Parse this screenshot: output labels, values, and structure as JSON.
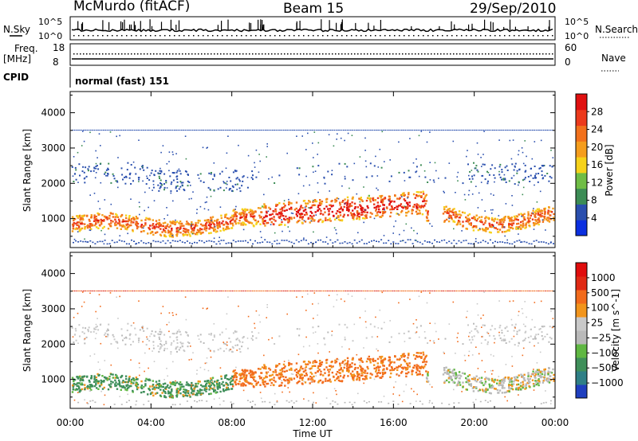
{
  "header": {
    "station": "McMurdo (fitACF)",
    "beam": "Beam 15",
    "date": "29/Sep/2010"
  },
  "top_panels": {
    "nsky_label": "N.Sky",
    "nsky_ticks": [
      "10^5",
      "10^0"
    ],
    "nsearch_label": "N.Search",
    "nsearch_ticks": [
      "10^5",
      "10^0"
    ],
    "freq_label": "Freq.",
    "freq_unit": "[MHz]",
    "freq_ticks": [
      "18",
      "8"
    ],
    "nave_label": "Nave",
    "nave_ticks": [
      "60",
      "0"
    ],
    "cpid_label": "CPID",
    "cpid_text": "normal (fast) 151"
  },
  "colors": {
    "power": [
      "#0b2fe0",
      "#2a4fae",
      "#3c8c55",
      "#6fbd45",
      "#f6d21a",
      "#f59d1d",
      "#f2711c",
      "#ec3a1c",
      "#e01010"
    ],
    "velocity": [
      "#1f3fbf",
      "#2f7f86",
      "#3f8f5a",
      "#5fb742",
      "#b9b9b9",
      "#c9c9c9",
      "#f2951c",
      "#f26b1c",
      "#e02a14",
      "#e00d0d"
    ]
  },
  "chart_data": [
    {
      "type": "heatmap",
      "name": "power",
      "xlabel": "",
      "ylabel": "Slant Range [km]",
      "xlim": [
        0,
        24
      ],
      "ylim": [
        180,
        4600
      ],
      "y_ticks": [
        "1000",
        "2000",
        "3000",
        "4000"
      ],
      "x_ticks": [
        "00:00",
        "04:00",
        "08:00",
        "12:00",
        "16:00",
        "20:00",
        "00:00"
      ],
      "colorbar": {
        "label": "Power [dB]",
        "ticks": [
          "4",
          "8",
          "12",
          "16",
          "20",
          "24",
          "28"
        ],
        "range": [
          0,
          30
        ]
      }
    },
    {
      "type": "heatmap",
      "name": "velocity",
      "xlabel": "Time UT",
      "ylabel": "Slant Range [km]",
      "xlim": [
        0,
        24
      ],
      "ylim": [
        180,
        4600
      ],
      "y_ticks": [
        "1000",
        "2000",
        "3000",
        "4000"
      ],
      "x_ticks": [
        "00:00",
        "04:00",
        "08:00",
        "12:00",
        "16:00",
        "20:00",
        "00:00"
      ],
      "colorbar": {
        "label": "Velocity [m s^-1]",
        "ticks": [
          "1000",
          "500",
          "100",
          "25",
          "−25",
          "−100",
          "−500",
          "−1000"
        ],
        "range": [
          -1000,
          1000
        ]
      }
    }
  ]
}
